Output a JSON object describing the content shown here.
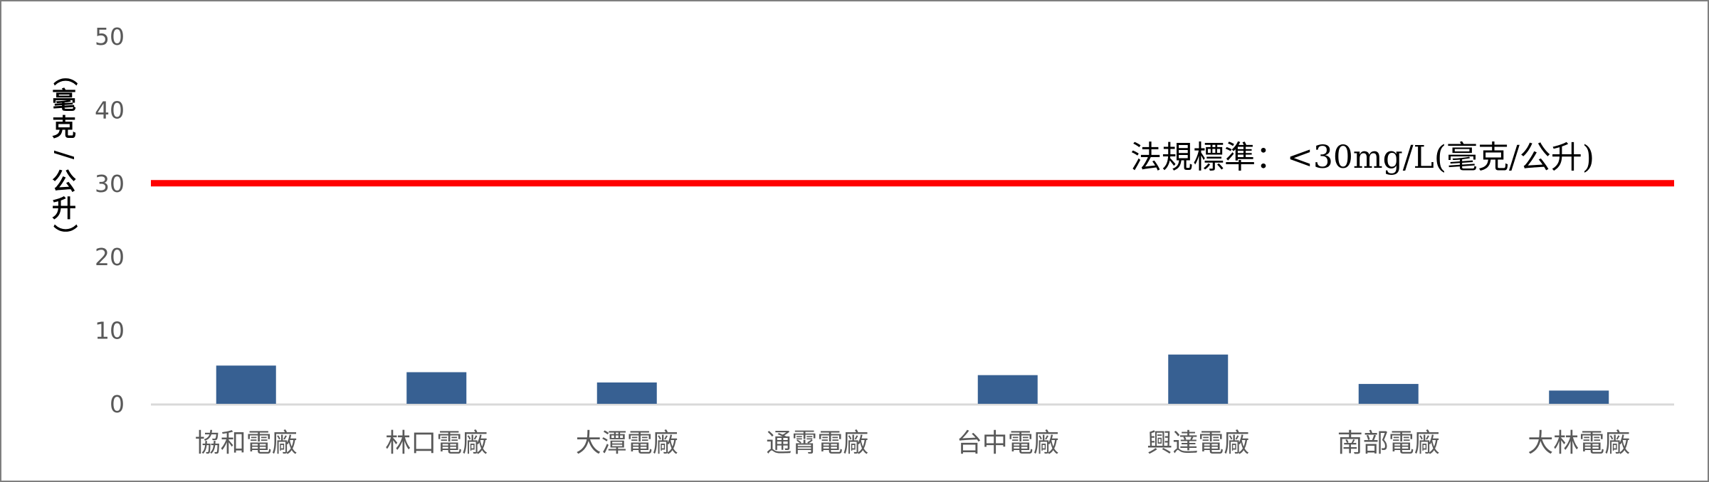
{
  "chart_data": {
    "type": "bar",
    "title": "",
    "xlabel": "",
    "ylabel": "（毫克/公升）",
    "ylim": [
      0,
      50
    ],
    "yticks": [
      0,
      10,
      20,
      30,
      40,
      50
    ],
    "categories": [
      "協和電廠",
      "林口電廠",
      "大潭電廠",
      "通霄電廠",
      "台中電廠",
      "興達電廠",
      "南部電廠",
      "大林電廠"
    ],
    "values": [
      5.2,
      4.3,
      2.9,
      0,
      3.9,
      6.7,
      2.7,
      1.8
    ],
    "bar_color": "#376092",
    "grid": false,
    "reference_line": {
      "value": 30,
      "color": "#ff0000",
      "label": "法規標準：<30mg/L(毫克/公升)"
    }
  }
}
